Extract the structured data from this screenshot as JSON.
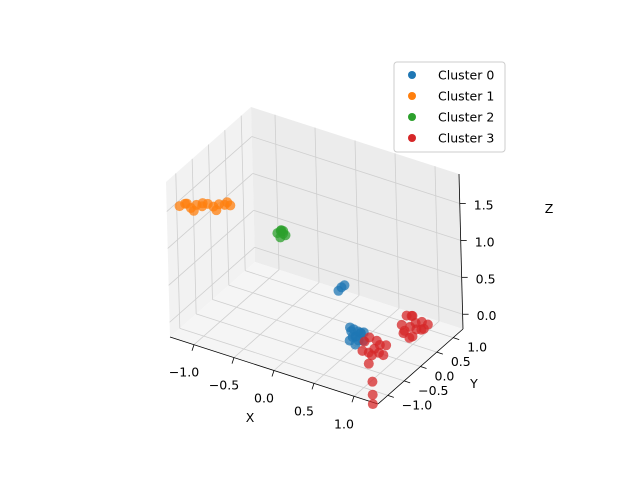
{
  "chart_data": {
    "type": "scatter",
    "projection": "3d",
    "xlabel": "X",
    "ylabel": "Y",
    "zlabel": "Z",
    "xlim": [
      -1.3,
      1.3
    ],
    "ylim": [
      -1.3,
      1.3
    ],
    "zlim": [
      -0.2,
      1.9
    ],
    "xticks": [
      -1.0,
      -0.5,
      0.0,
      0.5,
      1.0
    ],
    "yticks": [
      -1.0,
      -0.5,
      0.0,
      0.5,
      1.0
    ],
    "zticks": [
      0.0,
      0.5,
      1.0,
      1.5
    ],
    "xtick_labels": [
      "−1.0",
      "−0.5",
      "0.0",
      "0.5",
      "1.0"
    ],
    "ytick_labels": [
      "−1.0",
      "−0.5",
      "0.0",
      "0.5",
      "1.0"
    ],
    "ztick_labels": [
      "0.0",
      "0.5",
      "1.0",
      "1.5"
    ],
    "grid": true,
    "legend_position": "top-right",
    "series": [
      {
        "name": "Cluster 0",
        "color": "#1f77b4",
        "points": [
          [
            0.55,
            -0.15,
            0.0
          ],
          [
            0.6,
            -0.1,
            0.05
          ],
          [
            0.5,
            -0.2,
            -0.05
          ],
          [
            0.62,
            -0.22,
            0.0
          ],
          [
            0.58,
            -0.05,
            0.02
          ],
          [
            0.52,
            -0.12,
            0.08
          ],
          [
            0.65,
            -0.15,
            -0.02
          ],
          [
            0.48,
            -0.1,
            0.03
          ],
          [
            0.56,
            -0.25,
            0.04
          ],
          [
            0.6,
            -0.18,
            0.1
          ],
          [
            0.53,
            -0.08,
            -0.03
          ],
          [
            0.63,
            -0.08,
            0.06
          ],
          [
            0.5,
            -0.18,
            0.12
          ],
          [
            0.57,
            -0.2,
            -0.08
          ],
          [
            -0.05,
            0.9,
            0.05
          ],
          [
            -0.08,
            0.88,
            0.0
          ],
          [
            -0.02,
            0.92,
            0.08
          ]
        ]
      },
      {
        "name": "Cluster 1",
        "color": "#ff7f0e",
        "points": [
          [
            -1.2,
            -1.15,
            1.55
          ],
          [
            -1.15,
            -1.1,
            1.58
          ],
          [
            -1.1,
            -1.05,
            1.52
          ],
          [
            -1.05,
            -1.0,
            1.56
          ],
          [
            -1.0,
            -0.95,
            1.54
          ],
          [
            -0.95,
            -0.9,
            1.57
          ],
          [
            -0.9,
            -0.85,
            1.53
          ],
          [
            -0.85,
            -0.8,
            1.56
          ],
          [
            -0.8,
            -0.75,
            1.55
          ],
          [
            -0.75,
            -0.7,
            1.54
          ],
          [
            -1.12,
            -1.12,
            1.6
          ],
          [
            -0.98,
            -0.98,
            1.6
          ],
          [
            -0.86,
            -0.86,
            1.5
          ],
          [
            -1.06,
            -1.06,
            1.5
          ],
          [
            -0.78,
            -0.72,
            1.58
          ]
        ]
      },
      {
        "name": "Cluster 2",
        "color": "#2ca02c",
        "points": [
          [
            -0.65,
            0.45,
            0.75
          ],
          [
            -0.62,
            0.48,
            0.78
          ],
          [
            -0.6,
            0.5,
            0.74
          ],
          [
            -0.58,
            0.46,
            0.8
          ],
          [
            -0.63,
            0.52,
            0.77
          ],
          [
            -0.57,
            0.5,
            0.73
          ],
          [
            -0.61,
            0.44,
            0.71
          ]
        ]
      },
      {
        "name": "Cluster 3",
        "color": "#d62728",
        "points": [
          [
            0.85,
            -0.3,
            0.0
          ],
          [
            0.9,
            -0.25,
            0.05
          ],
          [
            0.8,
            -0.35,
            -0.05
          ],
          [
            0.95,
            -0.4,
            0.02
          ],
          [
            0.75,
            -0.2,
            0.08
          ],
          [
            0.88,
            -0.45,
            -0.02
          ],
          [
            0.82,
            -0.15,
            0.04
          ],
          [
            1.0,
            -0.3,
            0.1
          ],
          [
            0.7,
            -0.3,
            -0.08
          ],
          [
            0.92,
            -0.2,
            -0.1
          ],
          [
            0.78,
            -0.42,
            0.12
          ],
          [
            0.86,
            -0.5,
            -0.12
          ],
          [
            0.9,
            -0.5,
            -0.35
          ],
          [
            0.92,
            -0.55,
            -0.5
          ],
          [
            0.94,
            -0.6,
            -0.6
          ],
          [
            0.95,
            0.55,
            0.0
          ],
          [
            1.0,
            0.6,
            0.05
          ],
          [
            0.9,
            0.5,
            -0.05
          ],
          [
            1.05,
            0.5,
            0.02
          ],
          [
            0.92,
            0.7,
            0.08
          ],
          [
            1.08,
            0.65,
            -0.02
          ],
          [
            0.88,
            0.62,
            0.1
          ],
          [
            1.1,
            0.55,
            0.12
          ],
          [
            0.98,
            0.45,
            -0.1
          ],
          [
            1.02,
            0.72,
            -0.08
          ],
          [
            0.9,
            0.42,
            0.06
          ],
          [
            1.12,
            0.68,
            0.04
          ],
          [
            0.96,
            0.58,
            0.14
          ],
          [
            1.04,
            0.4,
            -0.04
          ],
          [
            0.86,
            0.56,
            -0.12
          ]
        ]
      }
    ]
  }
}
